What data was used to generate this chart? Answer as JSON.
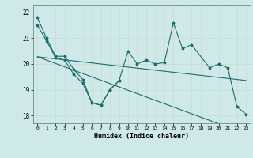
{
  "xlabel": "Humidex (Indice chaleur)",
  "background_color": "#cfe8e8",
  "line_color": "#1a6e6e",
  "x_values": [
    0,
    1,
    2,
    3,
    4,
    5,
    6,
    7,
    8,
    9,
    10,
    11,
    12,
    13,
    14,
    15,
    16,
    17,
    18,
    19,
    20,
    21,
    22,
    23
  ],
  "series_zigzag": [
    21.8,
    21.0,
    20.3,
    20.3,
    19.8,
    19.4,
    18.5,
    18.4,
    19.0,
    19.35,
    20.5,
    20.0,
    20.15,
    20.0,
    20.05,
    21.6,
    20.6,
    20.75,
    null,
    19.85,
    20.0,
    19.85,
    18.35,
    18.05
  ],
  "series_steep": [
    21.5,
    20.9,
    20.25,
    20.15,
    19.6,
    19.25,
    18.5,
    18.4,
    19.0,
    19.35,
    null,
    null,
    null,
    null,
    null,
    null,
    null,
    null,
    null,
    null,
    null,
    null,
    null,
    null
  ],
  "trend_flat": [
    20.28,
    20.24,
    20.2,
    20.16,
    20.12,
    20.08,
    20.04,
    20.0,
    19.96,
    19.92,
    19.88,
    19.84,
    19.8,
    19.76,
    19.72,
    19.68,
    19.64,
    19.6,
    19.56,
    19.52,
    19.48,
    19.44,
    19.4,
    19.36
  ],
  "trend_steep": [
    20.28,
    20.15,
    20.02,
    19.89,
    19.76,
    19.63,
    19.5,
    19.37,
    19.24,
    19.11,
    18.98,
    18.85,
    18.72,
    18.59,
    18.46,
    18.33,
    18.2,
    18.07,
    17.94,
    17.81,
    17.68,
    17.55,
    17.42,
    17.29
  ],
  "ylim": [
    17.7,
    22.3
  ],
  "yticks": [
    18,
    19,
    20,
    21,
    22
  ],
  "xticks": [
    0,
    1,
    2,
    3,
    4,
    5,
    6,
    7,
    8,
    9,
    10,
    11,
    12,
    13,
    14,
    15,
    16,
    17,
    18,
    19,
    20,
    21,
    22,
    23
  ]
}
